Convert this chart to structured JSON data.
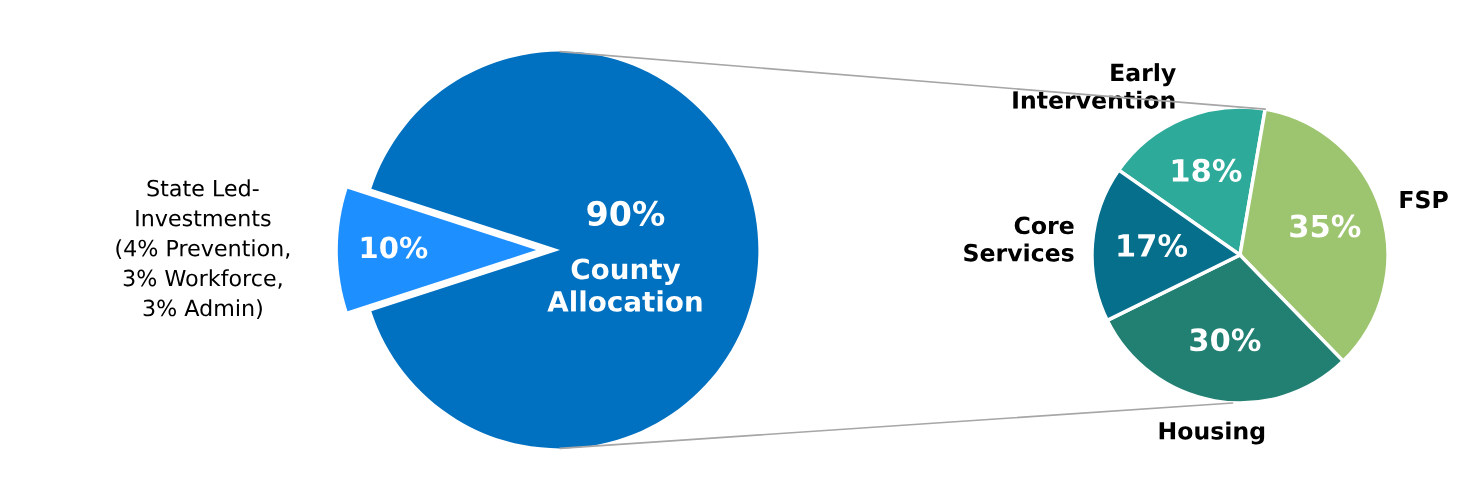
{
  "chart_data": [
    {
      "type": "pie",
      "categories": [
        "State Led-\nInvestments\n(4% Prevention,\n3% Workforce,\n3% Admin)",
        "County\nAllocation"
      ],
      "values": [
        10,
        90
      ],
      "colors": [
        "#1e8fff",
        "#0070c0"
      ],
      "value_labels": [
        "10%",
        "90%"
      ]
    },
    {
      "type": "pie",
      "categories": [
        "Early\nIntervention",
        "FSP",
        "Housing",
        "Core\nServices"
      ],
      "values": [
        18,
        35,
        30,
        17
      ],
      "colors": [
        "#2eaa9a",
        "#9dc46f",
        "#228073",
        "#056f8c"
      ],
      "value_labels": [
        "18%",
        "35%",
        "30%",
        "17%"
      ]
    }
  ]
}
